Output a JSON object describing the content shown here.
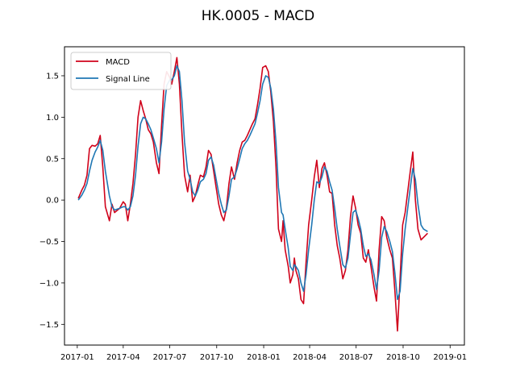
{
  "chart_data": {
    "type": "line",
    "title": "HK.0005 - MACD",
    "xlabel": "",
    "ylabel": "",
    "xlim": [
      "2017-01",
      "2019-01"
    ],
    "ylim": [
      -1.75,
      1.85
    ],
    "x_ticks": [
      "2017-01",
      "2017-04",
      "2017-07",
      "2017-10",
      "2018-01",
      "2018-04",
      "2018-07",
      "2018-10",
      "2019-01"
    ],
    "y_ticks": [
      "−1.5",
      "−1.0",
      "−0.5",
      "0.0",
      "0.5",
      "1.0",
      "1.5"
    ],
    "y_tick_values": [
      -1.5,
      -1.0,
      -0.5,
      0.0,
      0.5,
      1.0,
      1.5
    ],
    "grid": false,
    "legend_position": "top-left",
    "series": [
      {
        "name": "MACD",
        "color": "#d0021b",
        "points": [
          [
            "2017-01-03",
            0.02
          ],
          [
            "2017-01-10",
            0.12
          ],
          [
            "2017-01-15",
            0.18
          ],
          [
            "2017-01-20",
            0.3
          ],
          [
            "2017-01-25",
            0.62
          ],
          [
            "2017-01-30",
            0.66
          ],
          [
            "2017-02-05",
            0.65
          ],
          [
            "2017-02-10",
            0.68
          ],
          [
            "2017-02-15",
            0.78
          ],
          [
            "2017-02-20",
            0.4
          ],
          [
            "2017-02-25",
            -0.08
          ],
          [
            "2017-03-05",
            -0.25
          ],
          [
            "2017-03-10",
            -0.05
          ],
          [
            "2017-03-15",
            -0.15
          ],
          [
            "2017-03-25",
            -0.1
          ],
          [
            "2017-04-01",
            -0.02
          ],
          [
            "2017-04-05",
            -0.05
          ],
          [
            "2017-04-10",
            -0.25
          ],
          [
            "2017-04-15",
            -0.05
          ],
          [
            "2017-04-20",
            0.2
          ],
          [
            "2017-04-25",
            0.55
          ],
          [
            "2017-04-30",
            1.0
          ],
          [
            "2017-05-05",
            1.2
          ],
          [
            "2017-05-10",
            1.08
          ],
          [
            "2017-05-15",
            0.98
          ],
          [
            "2017-05-20",
            0.85
          ],
          [
            "2017-05-25",
            0.8
          ],
          [
            "2017-05-30",
            0.7
          ],
          [
            "2017-06-05",
            0.45
          ],
          [
            "2017-06-10",
            0.32
          ],
          [
            "2017-06-15",
            0.9
          ],
          [
            "2017-06-20",
            1.4
          ],
          [
            "2017-06-25",
            1.55
          ],
          [
            "2017-07-01",
            1.48
          ],
          [
            "2017-07-05",
            1.4
          ],
          [
            "2017-07-10",
            1.55
          ],
          [
            "2017-07-15",
            1.72
          ],
          [
            "2017-07-20",
            1.4
          ],
          [
            "2017-07-25",
            0.8
          ],
          [
            "2017-07-30",
            0.3
          ],
          [
            "2017-08-05",
            0.1
          ],
          [
            "2017-08-10",
            0.3
          ],
          [
            "2017-08-15",
            -0.02
          ],
          [
            "2017-08-20",
            0.05
          ],
          [
            "2017-08-25",
            0.18
          ],
          [
            "2017-08-30",
            0.3
          ],
          [
            "2017-09-05",
            0.28
          ],
          [
            "2017-09-10",
            0.4
          ],
          [
            "2017-09-15",
            0.6
          ],
          [
            "2017-09-20",
            0.55
          ],
          [
            "2017-09-25",
            0.35
          ],
          [
            "2017-09-30",
            0.15
          ],
          [
            "2017-10-05",
            -0.05
          ],
          [
            "2017-10-10",
            -0.18
          ],
          [
            "2017-10-15",
            -0.25
          ],
          [
            "2017-10-20",
            -0.1
          ],
          [
            "2017-10-25",
            0.2
          ],
          [
            "2017-10-30",
            0.4
          ],
          [
            "2017-11-05",
            0.25
          ],
          [
            "2017-11-10",
            0.45
          ],
          [
            "2017-11-15",
            0.6
          ],
          [
            "2017-11-20",
            0.7
          ],
          [
            "2017-11-25",
            0.72
          ],
          [
            "2017-11-30",
            0.78
          ],
          [
            "2017-12-05",
            0.85
          ],
          [
            "2017-12-10",
            0.92
          ],
          [
            "2017-12-15",
            0.98
          ],
          [
            "2017-12-20",
            1.15
          ],
          [
            "2017-12-25",
            1.35
          ],
          [
            "2017-12-30",
            1.6
          ],
          [
            "2018-01-05",
            1.62
          ],
          [
            "2018-01-10",
            1.55
          ],
          [
            "2018-01-15",
            1.3
          ],
          [
            "2018-01-20",
            0.95
          ],
          [
            "2018-01-25",
            0.4
          ],
          [
            "2018-01-30",
            -0.35
          ],
          [
            "2018-02-05",
            -0.5
          ],
          [
            "2018-02-08",
            -0.25
          ],
          [
            "2018-02-12",
            -0.6
          ],
          [
            "2018-02-18",
            -0.8
          ],
          [
            "2018-02-22",
            -1.0
          ],
          [
            "2018-02-27",
            -0.9
          ],
          [
            "2018-03-02",
            -0.7
          ],
          [
            "2018-03-05",
            -0.85
          ],
          [
            "2018-03-10",
            -0.95
          ],
          [
            "2018-03-15",
            -1.2
          ],
          [
            "2018-03-20",
            -1.25
          ],
          [
            "2018-03-25",
            -0.75
          ],
          [
            "2018-03-30",
            -0.3
          ],
          [
            "2018-04-05",
            0.0
          ],
          [
            "2018-04-10",
            0.28
          ],
          [
            "2018-04-15",
            0.48
          ],
          [
            "2018-04-20",
            0.15
          ],
          [
            "2018-04-25",
            0.38
          ],
          [
            "2018-04-30",
            0.45
          ],
          [
            "2018-05-05",
            0.3
          ],
          [
            "2018-05-10",
            0.1
          ],
          [
            "2018-05-15",
            0.08
          ],
          [
            "2018-05-20",
            -0.3
          ],
          [
            "2018-05-25",
            -0.55
          ],
          [
            "2018-05-30",
            -0.7
          ],
          [
            "2018-06-05",
            -0.95
          ],
          [
            "2018-06-10",
            -0.85
          ],
          [
            "2018-06-15",
            -0.6
          ],
          [
            "2018-06-20",
            -0.2
          ],
          [
            "2018-06-25",
            0.05
          ],
          [
            "2018-06-30",
            -0.1
          ],
          [
            "2018-07-05",
            -0.3
          ],
          [
            "2018-07-10",
            -0.4
          ],
          [
            "2018-07-15",
            -0.7
          ],
          [
            "2018-07-20",
            -0.75
          ],
          [
            "2018-07-25",
            -0.6
          ],
          [
            "2018-07-30",
            -0.8
          ],
          [
            "2018-08-05",
            -1.05
          ],
          [
            "2018-08-10",
            -1.22
          ],
          [
            "2018-08-15",
            -0.6
          ],
          [
            "2018-08-20",
            -0.2
          ],
          [
            "2018-08-25",
            -0.25
          ],
          [
            "2018-08-30",
            -0.45
          ],
          [
            "2018-09-05",
            -0.6
          ],
          [
            "2018-09-10",
            -0.7
          ],
          [
            "2018-09-15",
            -1.1
          ],
          [
            "2018-09-20",
            -1.58
          ],
          [
            "2018-09-25",
            -0.95
          ],
          [
            "2018-09-30",
            -0.3
          ],
          [
            "2018-10-05",
            -0.15
          ],
          [
            "2018-10-10",
            0.1
          ],
          [
            "2018-10-15",
            0.35
          ],
          [
            "2018-10-20",
            0.58
          ],
          [
            "2018-10-25",
            0.0
          ],
          [
            "2018-10-30",
            -0.35
          ],
          [
            "2018-11-05",
            -0.48
          ],
          [
            "2018-11-10",
            -0.45
          ],
          [
            "2018-11-18",
            -0.4
          ]
        ]
      },
      {
        "name": "Signal Line",
        "color": "#1f77b4",
        "points": [
          [
            "2017-01-03",
            0.0
          ],
          [
            "2017-01-10",
            0.06
          ],
          [
            "2017-01-15",
            0.12
          ],
          [
            "2017-01-20",
            0.2
          ],
          [
            "2017-01-25",
            0.35
          ],
          [
            "2017-01-30",
            0.48
          ],
          [
            "2017-02-05",
            0.58
          ],
          [
            "2017-02-10",
            0.64
          ],
          [
            "2017-02-15",
            0.72
          ],
          [
            "2017-02-20",
            0.6
          ],
          [
            "2017-02-25",
            0.35
          ],
          [
            "2017-03-05",
            0.05
          ],
          [
            "2017-03-10",
            -0.08
          ],
          [
            "2017-03-15",
            -0.12
          ],
          [
            "2017-03-25",
            -0.1
          ],
          [
            "2017-04-01",
            -0.08
          ],
          [
            "2017-04-05",
            -0.08
          ],
          [
            "2017-04-10",
            -0.12
          ],
          [
            "2017-04-15",
            -0.08
          ],
          [
            "2017-04-20",
            0.05
          ],
          [
            "2017-04-25",
            0.3
          ],
          [
            "2017-04-30",
            0.65
          ],
          [
            "2017-05-05",
            0.92
          ],
          [
            "2017-05-10",
            1.0
          ],
          [
            "2017-05-15",
            0.98
          ],
          [
            "2017-05-20",
            0.92
          ],
          [
            "2017-05-25",
            0.85
          ],
          [
            "2017-05-30",
            0.75
          ],
          [
            "2017-06-05",
            0.62
          ],
          [
            "2017-06-10",
            0.45
          ],
          [
            "2017-06-15",
            0.7
          ],
          [
            "2017-06-20",
            1.1
          ],
          [
            "2017-06-25",
            1.38
          ],
          [
            "2017-07-01",
            1.45
          ],
          [
            "2017-07-05",
            1.45
          ],
          [
            "2017-07-10",
            1.5
          ],
          [
            "2017-07-15",
            1.62
          ],
          [
            "2017-07-20",
            1.55
          ],
          [
            "2017-07-25",
            1.2
          ],
          [
            "2017-07-30",
            0.7
          ],
          [
            "2017-08-05",
            0.35
          ],
          [
            "2017-08-10",
            0.25
          ],
          [
            "2017-08-15",
            0.1
          ],
          [
            "2017-08-20",
            0.05
          ],
          [
            "2017-08-25",
            0.12
          ],
          [
            "2017-08-30",
            0.22
          ],
          [
            "2017-09-05",
            0.25
          ],
          [
            "2017-09-10",
            0.32
          ],
          [
            "2017-09-15",
            0.48
          ],
          [
            "2017-09-20",
            0.52
          ],
          [
            "2017-09-25",
            0.42
          ],
          [
            "2017-09-30",
            0.25
          ],
          [
            "2017-10-05",
            0.08
          ],
          [
            "2017-10-10",
            -0.05
          ],
          [
            "2017-10-15",
            -0.15
          ],
          [
            "2017-10-20",
            -0.12
          ],
          [
            "2017-10-25",
            0.05
          ],
          [
            "2017-10-30",
            0.25
          ],
          [
            "2017-11-05",
            0.28
          ],
          [
            "2017-11-10",
            0.38
          ],
          [
            "2017-11-15",
            0.5
          ],
          [
            "2017-11-20",
            0.62
          ],
          [
            "2017-11-25",
            0.68
          ],
          [
            "2017-11-30",
            0.72
          ],
          [
            "2017-12-05",
            0.78
          ],
          [
            "2017-12-10",
            0.85
          ],
          [
            "2017-12-15",
            0.92
          ],
          [
            "2017-12-20",
            1.05
          ],
          [
            "2017-12-25",
            1.2
          ],
          [
            "2017-12-30",
            1.4
          ],
          [
            "2018-01-05",
            1.5
          ],
          [
            "2018-01-10",
            1.48
          ],
          [
            "2018-01-15",
            1.35
          ],
          [
            "2018-01-20",
            1.1
          ],
          [
            "2018-01-25",
            0.7
          ],
          [
            "2018-01-30",
            0.15
          ],
          [
            "2018-02-05",
            -0.15
          ],
          [
            "2018-02-08",
            -0.18
          ],
          [
            "2018-02-12",
            -0.35
          ],
          [
            "2018-02-18",
            -0.58
          ],
          [
            "2018-02-22",
            -0.8
          ],
          [
            "2018-02-27",
            -0.85
          ],
          [
            "2018-03-02",
            -0.78
          ],
          [
            "2018-03-05",
            -0.8
          ],
          [
            "2018-03-10",
            -0.85
          ],
          [
            "2018-03-15",
            -1.0
          ],
          [
            "2018-03-20",
            -1.1
          ],
          [
            "2018-03-25",
            -0.9
          ],
          [
            "2018-03-30",
            -0.6
          ],
          [
            "2018-04-05",
            -0.3
          ],
          [
            "2018-04-10",
            0.0
          ],
          [
            "2018-04-15",
            0.22
          ],
          [
            "2018-04-20",
            0.2
          ],
          [
            "2018-04-25",
            0.28
          ],
          [
            "2018-04-30",
            0.4
          ],
          [
            "2018-05-05",
            0.35
          ],
          [
            "2018-05-10",
            0.22
          ],
          [
            "2018-05-15",
            0.12
          ],
          [
            "2018-05-20",
            -0.1
          ],
          [
            "2018-05-25",
            -0.35
          ],
          [
            "2018-05-30",
            -0.55
          ],
          [
            "2018-06-05",
            -0.78
          ],
          [
            "2018-06-10",
            -0.82
          ],
          [
            "2018-06-15",
            -0.7
          ],
          [
            "2018-06-20",
            -0.42
          ],
          [
            "2018-06-25",
            -0.15
          ],
          [
            "2018-06-30",
            -0.12
          ],
          [
            "2018-07-05",
            -0.22
          ],
          [
            "2018-07-10",
            -0.35
          ],
          [
            "2018-07-15",
            -0.55
          ],
          [
            "2018-07-20",
            -0.68
          ],
          [
            "2018-07-25",
            -0.65
          ],
          [
            "2018-07-30",
            -0.72
          ],
          [
            "2018-08-05",
            -0.9
          ],
          [
            "2018-08-10",
            -1.08
          ],
          [
            "2018-08-15",
            -0.85
          ],
          [
            "2018-08-20",
            -0.45
          ],
          [
            "2018-08-25",
            -0.32
          ],
          [
            "2018-08-30",
            -0.38
          ],
          [
            "2018-09-05",
            -0.5
          ],
          [
            "2018-09-10",
            -0.62
          ],
          [
            "2018-09-15",
            -0.88
          ],
          [
            "2018-09-20",
            -1.2
          ],
          [
            "2018-09-25",
            -1.1
          ],
          [
            "2018-09-30",
            -0.65
          ],
          [
            "2018-10-05",
            -0.35
          ],
          [
            "2018-10-10",
            -0.1
          ],
          [
            "2018-10-15",
            0.15
          ],
          [
            "2018-10-20",
            0.38
          ],
          [
            "2018-10-25",
            0.25
          ],
          [
            "2018-10-30",
            -0.05
          ],
          [
            "2018-11-05",
            -0.3
          ],
          [
            "2018-11-10",
            -0.35
          ],
          [
            "2018-11-18",
            -0.38
          ]
        ]
      }
    ]
  }
}
